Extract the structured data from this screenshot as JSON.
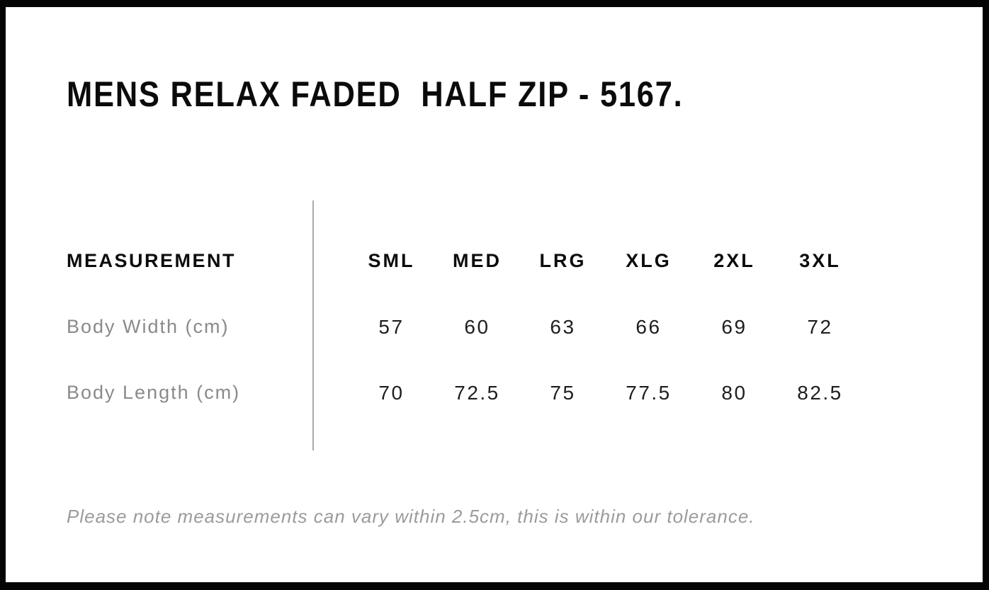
{
  "title": "MENS RELAX FADED  HALF ZIP - 5167.",
  "table": {
    "measurement_header": "MEASUREMENT",
    "size_headers": [
      "SML",
      "MED",
      "LRG",
      "XLG",
      "2XL",
      "3XL"
    ],
    "rows": [
      {
        "label": "Body Width (cm)",
        "values": [
          "57",
          "60",
          "63",
          "66",
          "69",
          "72"
        ]
      },
      {
        "label": "Body Length (cm)",
        "values": [
          "70",
          "72.5",
          "75",
          "77.5",
          "80",
          "82.5"
        ]
      }
    ]
  },
  "note": "Please note measurements can vary within 2.5cm, this is within our tolerance.",
  "colors": {
    "frame_border": "#050505",
    "background": "#ffffff",
    "title_text": "#0b0b0b",
    "header_text": "#0c0c0c",
    "value_text": "#1e1e1e",
    "label_text": "#8a8a8a",
    "note_text": "#9b9b9b",
    "divider_line": "#aaaaaa"
  }
}
